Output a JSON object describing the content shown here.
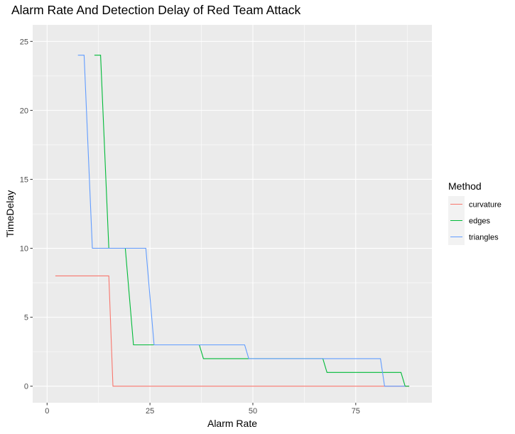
{
  "chart_data": {
    "type": "line",
    "title": "Alarm Rate And Detection Delay of Red Team Attack",
    "xlabel": "Alarm Rate",
    "ylabel": "TimeDelay",
    "xlim": [
      -3.5,
      93.5
    ],
    "ylim": [
      -1.2,
      26.2
    ],
    "x_ticks": [
      0,
      25,
      50,
      75
    ],
    "y_ticks": [
      0,
      5,
      10,
      15,
      20,
      25
    ],
    "grid": true,
    "legend": {
      "title": "Method",
      "placement": "right"
    },
    "series": [
      {
        "name": "curvature",
        "color": "#F8766D",
        "points": [
          [
            2,
            8
          ],
          [
            15,
            8
          ],
          [
            16,
            0
          ],
          [
            88,
            0
          ]
        ]
      },
      {
        "name": "edges",
        "color": "#00BA38",
        "points": [
          [
            11.5,
            24
          ],
          [
            13,
            24
          ],
          [
            15,
            10
          ],
          [
            19,
            10
          ],
          [
            21,
            3
          ],
          [
            37,
            3
          ],
          [
            38,
            2
          ],
          [
            67,
            2
          ],
          [
            68,
            1
          ],
          [
            86,
            1
          ],
          [
            87,
            0
          ],
          [
            88,
            0
          ]
        ]
      },
      {
        "name": "triangles",
        "color": "#619CFF",
        "points": [
          [
            7.5,
            24
          ],
          [
            9,
            24
          ],
          [
            11,
            10
          ],
          [
            24,
            10
          ],
          [
            26,
            3
          ],
          [
            48,
            3
          ],
          [
            49,
            2
          ],
          [
            81,
            2
          ],
          [
            82,
            0
          ],
          [
            87,
            0
          ]
        ]
      }
    ]
  }
}
